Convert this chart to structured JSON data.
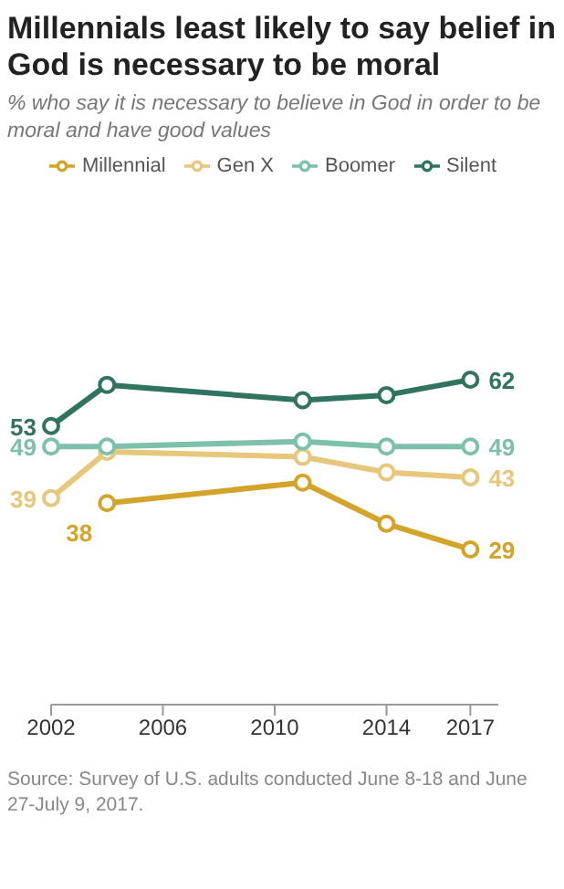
{
  "chart_data": {
    "type": "line",
    "title": "Millennials least likely to say belief in God is necessary to be moral",
    "subtitle": "% who say it is necessary to believe in God in order to be moral and have good values",
    "x": [
      2002,
      2004,
      2011,
      2014,
      2017
    ],
    "series": [
      {
        "name": "Millennial",
        "color": "#d4a42a",
        "values": [
          null,
          38,
          42,
          34,
          29
        ],
        "value_labels": [
          null,
          "38",
          null,
          null,
          "29"
        ]
      },
      {
        "name": "Gen X",
        "color": "#e6c77b",
        "values": [
          39,
          48,
          47,
          44,
          43
        ],
        "value_labels": [
          "39",
          null,
          null,
          null,
          "43"
        ]
      },
      {
        "name": "Boomer",
        "color": "#7dc0ab",
        "values": [
          49,
          49,
          50,
          49,
          49
        ],
        "value_labels": [
          "49",
          null,
          null,
          null,
          "49"
        ]
      },
      {
        "name": "Silent",
        "color": "#2f7360",
        "values": [
          53,
          61,
          58,
          59,
          62
        ],
        "value_labels": [
          "53",
          null,
          null,
          null,
          "62"
        ]
      }
    ],
    "xlim": [
      2002,
      2018
    ],
    "xticks": [
      2002,
      2006,
      2010,
      2014,
      2017
    ],
    "tick_labels": "x",
    "grid": false,
    "legend": "top",
    "marker": "circle",
    "line_style": "solid",
    "annotations": [
      "Source: Survey of U.S. adults conducted June 8-18 and June 27-July 9, 2017."
    ]
  }
}
